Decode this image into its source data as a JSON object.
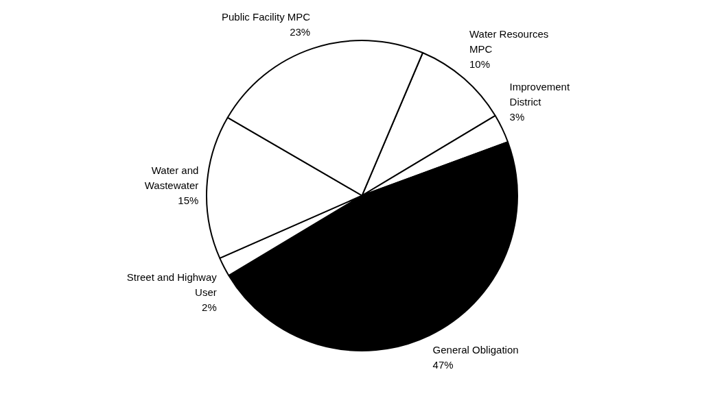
{
  "chart_data": {
    "type": "pie",
    "categories": [
      "Water Resources MPC",
      "Improvement District",
      "General Obligation",
      "Street and Highway User",
      "Water and Wastewater",
      "Public Facility MPC"
    ],
    "values": [
      10,
      3,
      47,
      2,
      15,
      23
    ],
    "value_labels": [
      "10%",
      "3%",
      "47%",
      "2%",
      "15%",
      "23%"
    ],
    "colors": [
      "#ffffff",
      "#ffffff",
      "#000000",
      "#ffffff",
      "#ffffff",
      "#ffffff"
    ],
    "legend": false
  }
}
